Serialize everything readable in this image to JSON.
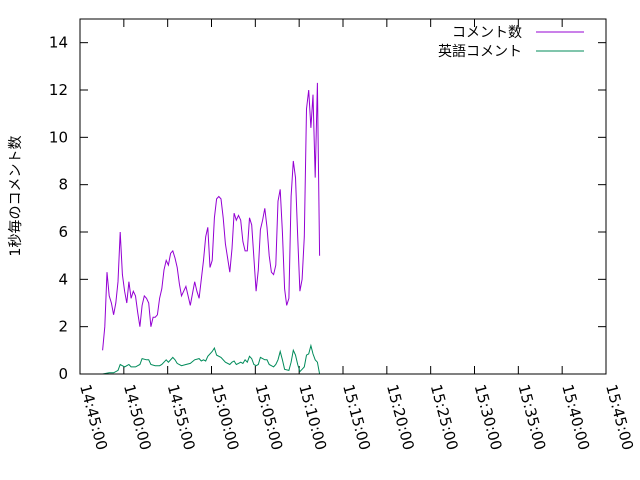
{
  "chart_data": {
    "type": "line",
    "title": "",
    "xlabel": "",
    "ylabel": "1秒毎のコメント数",
    "x_unit": "time (HH:MM:SS)",
    "xlim": [
      "14:45:00",
      "15:45:00"
    ],
    "ylim": [
      0,
      15
    ],
    "x_ticks": [
      "14:45:00",
      "14:50:00",
      "14:55:00",
      "15:00:00",
      "15:05:00",
      "15:10:00",
      "15:15:00",
      "15:20:00",
      "15:25:00",
      "15:30:00",
      "15:35:00",
      "15:40:00",
      "15:45:00"
    ],
    "y_ticks": [
      "0",
      "2",
      "4",
      "6",
      "8",
      "10",
      "12",
      "14"
    ],
    "grid": false,
    "legend_position": "top-right",
    "series": [
      {
        "name": "コメント数",
        "color": "#9400d3",
        "points": [
          [
            "14:47:35",
            1.0
          ],
          [
            "14:47:50",
            2.0
          ],
          [
            "14:48:05",
            4.3
          ],
          [
            "14:48:20",
            3.3
          ],
          [
            "14:48:35",
            3.0
          ],
          [
            "14:48:50",
            2.5
          ],
          [
            "14:49:05",
            3.0
          ],
          [
            "14:49:20",
            3.9
          ],
          [
            "14:49:35",
            6.0
          ],
          [
            "14:49:50",
            4.2
          ],
          [
            "14:50:05",
            3.5
          ],
          [
            "14:50:20",
            3.0
          ],
          [
            "14:50:35",
            3.9
          ],
          [
            "14:50:50",
            3.2
          ],
          [
            "14:51:05",
            3.5
          ],
          [
            "14:51:20",
            3.3
          ],
          [
            "14:51:35",
            2.6
          ],
          [
            "14:51:50",
            2.0
          ],
          [
            "14:52:05",
            2.9
          ],
          [
            "14:52:20",
            3.3
          ],
          [
            "14:52:35",
            3.2
          ],
          [
            "14:52:50",
            3.0
          ],
          [
            "14:53:05",
            2.0
          ],
          [
            "14:53:20",
            2.4
          ],
          [
            "14:53:35",
            2.4
          ],
          [
            "14:53:50",
            2.5
          ],
          [
            "14:54:05",
            3.2
          ],
          [
            "14:54:20",
            3.6
          ],
          [
            "14:54:35",
            4.4
          ],
          [
            "14:54:50",
            4.8
          ],
          [
            "14:55:05",
            4.6
          ],
          [
            "14:55:20",
            5.1
          ],
          [
            "14:55:35",
            5.2
          ],
          [
            "14:55:50",
            4.9
          ],
          [
            "14:56:05",
            4.5
          ],
          [
            "14:56:20",
            3.8
          ],
          [
            "14:56:35",
            3.3
          ],
          [
            "14:56:50",
            3.5
          ],
          [
            "14:57:05",
            3.7
          ],
          [
            "14:57:20",
            3.3
          ],
          [
            "14:57:35",
            2.9
          ],
          [
            "14:57:50",
            3.4
          ],
          [
            "14:58:05",
            3.9
          ],
          [
            "14:58:20",
            3.5
          ],
          [
            "14:58:35",
            3.2
          ],
          [
            "14:58:50",
            4.0
          ],
          [
            "14:59:05",
            4.8
          ],
          [
            "14:59:20",
            5.8
          ],
          [
            "14:59:35",
            6.2
          ],
          [
            "14:59:50",
            4.5
          ],
          [
            "15:00:05",
            4.8
          ],
          [
            "15:00:20",
            6.6
          ],
          [
            "15:00:35",
            7.4
          ],
          [
            "15:00:50",
            7.5
          ],
          [
            "15:01:05",
            7.4
          ],
          [
            "15:01:20",
            6.6
          ],
          [
            "15:01:35",
            5.5
          ],
          [
            "15:01:50",
            4.9
          ],
          [
            "15:02:05",
            4.3
          ],
          [
            "15:02:20",
            5.3
          ],
          [
            "15:02:35",
            6.8
          ],
          [
            "15:02:50",
            6.5
          ],
          [
            "15:03:05",
            6.7
          ],
          [
            "15:03:20",
            6.5
          ],
          [
            "15:03:35",
            5.6
          ],
          [
            "15:03:50",
            5.2
          ],
          [
            "15:04:05",
            5.2
          ],
          [
            "15:04:20",
            6.6
          ],
          [
            "15:04:35",
            6.3
          ],
          [
            "15:04:50",
            4.9
          ],
          [
            "15:05:05",
            3.5
          ],
          [
            "15:05:20",
            4.4
          ],
          [
            "15:05:35",
            6.1
          ],
          [
            "15:05:50",
            6.5
          ],
          [
            "15:06:05",
            7.0
          ],
          [
            "15:06:20",
            6.2
          ],
          [
            "15:06:35",
            5.0
          ],
          [
            "15:06:50",
            4.3
          ],
          [
            "15:07:05",
            4.2
          ],
          [
            "15:07:20",
            4.6
          ],
          [
            "15:07:35",
            7.3
          ],
          [
            "15:07:50",
            7.8
          ],
          [
            "15:08:05",
            6.0
          ],
          [
            "15:08:20",
            3.6
          ],
          [
            "15:08:35",
            2.9
          ],
          [
            "15:08:50",
            3.2
          ],
          [
            "15:09:05",
            7.5
          ],
          [
            "15:09:20",
            9.0
          ],
          [
            "15:09:35",
            8.3
          ],
          [
            "15:09:50",
            5.8
          ],
          [
            "15:10:05",
            3.5
          ],
          [
            "15:10:20",
            4.0
          ],
          [
            "15:10:35",
            5.8
          ],
          [
            "15:10:50",
            11.2
          ],
          [
            "15:11:05",
            12.0
          ],
          [
            "15:11:20",
            10.4
          ],
          [
            "15:11:35",
            11.8
          ],
          [
            "15:11:50",
            8.3
          ],
          [
            "15:12:05",
            12.3
          ],
          [
            "15:12:20",
            5.0
          ]
        ]
      },
      {
        "name": "英語コメント",
        "color": "#008b5a",
        "points": [
          [
            "14:47:35",
            0.0
          ],
          [
            "14:48:20",
            0.05
          ],
          [
            "14:48:50",
            0.05
          ],
          [
            "14:49:20",
            0.15
          ],
          [
            "14:49:35",
            0.4
          ],
          [
            "14:50:05",
            0.3
          ],
          [
            "14:50:35",
            0.4
          ],
          [
            "14:50:50",
            0.3
          ],
          [
            "14:51:20",
            0.3
          ],
          [
            "14:51:50",
            0.4
          ],
          [
            "14:52:05",
            0.65
          ],
          [
            "14:52:35",
            0.6
          ],
          [
            "14:52:50",
            0.6
          ],
          [
            "14:53:05",
            0.4
          ],
          [
            "14:53:35",
            0.35
          ],
          [
            "14:54:05",
            0.35
          ],
          [
            "14:54:20",
            0.4
          ],
          [
            "14:54:50",
            0.6
          ],
          [
            "14:55:05",
            0.5
          ],
          [
            "14:55:35",
            0.7
          ],
          [
            "14:55:50",
            0.6
          ],
          [
            "14:56:05",
            0.45
          ],
          [
            "14:56:35",
            0.35
          ],
          [
            "14:57:05",
            0.4
          ],
          [
            "14:57:35",
            0.45
          ],
          [
            "14:58:05",
            0.6
          ],
          [
            "14:58:35",
            0.65
          ],
          [
            "14:58:50",
            0.55
          ],
          [
            "14:59:05",
            0.6
          ],
          [
            "14:59:20",
            0.55
          ],
          [
            "14:59:35",
            0.75
          ],
          [
            "15:00:05",
            0.95
          ],
          [
            "15:00:20",
            1.1
          ],
          [
            "15:00:35",
            0.8
          ],
          [
            "15:01:05",
            0.7
          ],
          [
            "15:01:35",
            0.5
          ],
          [
            "15:02:05",
            0.4
          ],
          [
            "15:02:20",
            0.5
          ],
          [
            "15:02:35",
            0.55
          ],
          [
            "15:02:50",
            0.4
          ],
          [
            "15:03:05",
            0.45
          ],
          [
            "15:03:20",
            0.5
          ],
          [
            "15:03:35",
            0.45
          ],
          [
            "15:03:50",
            0.6
          ],
          [
            "15:04:05",
            0.5
          ],
          [
            "15:04:20",
            0.75
          ],
          [
            "15:04:35",
            0.65
          ],
          [
            "15:04:50",
            0.4
          ],
          [
            "15:05:05",
            0.35
          ],
          [
            "15:05:20",
            0.4
          ],
          [
            "15:05:35",
            0.7
          ],
          [
            "15:05:50",
            0.65
          ],
          [
            "15:06:05",
            0.6
          ],
          [
            "15:06:20",
            0.6
          ],
          [
            "15:06:35",
            0.4
          ],
          [
            "15:07:05",
            0.3
          ],
          [
            "15:07:20",
            0.4
          ],
          [
            "15:07:35",
            0.6
          ],
          [
            "15:07:50",
            0.95
          ],
          [
            "15:08:05",
            0.6
          ],
          [
            "15:08:20",
            0.2
          ],
          [
            "15:08:50",
            0.15
          ],
          [
            "15:09:05",
            0.5
          ],
          [
            "15:09:20",
            1.0
          ],
          [
            "15:09:35",
            0.8
          ],
          [
            "15:09:50",
            0.4
          ],
          [
            "15:10:05",
            0.1
          ],
          [
            "15:10:20",
            0.2
          ],
          [
            "15:10:35",
            0.3
          ],
          [
            "15:10:50",
            0.8
          ],
          [
            "15:11:05",
            0.85
          ],
          [
            "15:11:20",
            1.2
          ],
          [
            "15:11:35",
            0.85
          ],
          [
            "15:11:50",
            0.6
          ],
          [
            "15:12:05",
            0.5
          ],
          [
            "15:12:20",
            0.0
          ]
        ]
      }
    ]
  }
}
